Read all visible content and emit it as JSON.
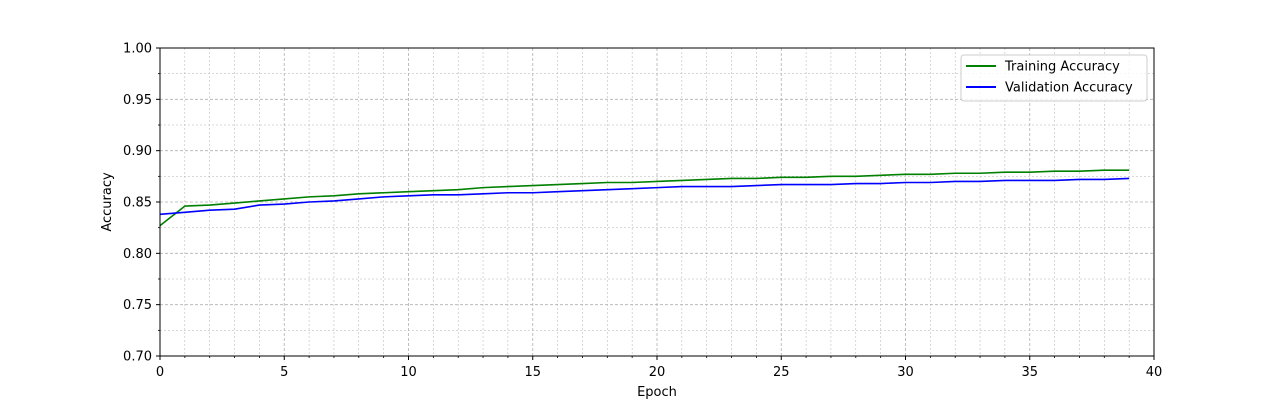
{
  "chart_data": {
    "type": "line",
    "title": "",
    "xlabel": "Epoch",
    "ylabel": "Accuracy",
    "xlim": [
      0,
      40
    ],
    "ylim": [
      0.7,
      1.0
    ],
    "x_ticks": [
      0,
      5,
      10,
      15,
      20,
      25,
      30,
      35,
      40
    ],
    "x_tick_labels": [
      "0",
      "5",
      "10",
      "15",
      "20",
      "25",
      "30",
      "35",
      "40"
    ],
    "y_ticks": [
      0.7,
      0.75,
      0.8,
      0.85,
      0.9,
      0.95,
      1.0
    ],
    "y_tick_labels": [
      "0.70",
      "0.75",
      "0.80",
      "0.85",
      "0.90",
      "0.95",
      "1.00"
    ],
    "grid": true,
    "minor_grid": true,
    "legend_position": "top-right",
    "x": [
      0,
      1,
      2,
      3,
      4,
      5,
      6,
      7,
      8,
      9,
      10,
      11,
      12,
      13,
      14,
      15,
      16,
      17,
      18,
      19,
      20,
      21,
      22,
      23,
      24,
      25,
      26,
      27,
      28,
      29,
      30,
      31,
      32,
      33,
      34,
      35,
      36,
      37,
      38,
      39
    ],
    "series": [
      {
        "name": "Training Accuracy",
        "color": "#008000",
        "values": [
          0.827,
          0.846,
          0.847,
          0.849,
          0.851,
          0.853,
          0.855,
          0.856,
          0.858,
          0.859,
          0.86,
          0.861,
          0.862,
          0.864,
          0.865,
          0.866,
          0.867,
          0.868,
          0.869,
          0.869,
          0.87,
          0.871,
          0.872,
          0.873,
          0.873,
          0.874,
          0.874,
          0.875,
          0.875,
          0.876,
          0.877,
          0.877,
          0.878,
          0.878,
          0.879,
          0.879,
          0.88,
          0.88,
          0.881,
          0.881
        ]
      },
      {
        "name": "Validation Accuracy",
        "color": "#0000ff",
        "values": [
          0.838,
          0.84,
          0.842,
          0.843,
          0.847,
          0.848,
          0.85,
          0.851,
          0.853,
          0.855,
          0.856,
          0.857,
          0.857,
          0.858,
          0.859,
          0.859,
          0.86,
          0.861,
          0.862,
          0.863,
          0.864,
          0.865,
          0.865,
          0.865,
          0.866,
          0.867,
          0.867,
          0.867,
          0.868,
          0.868,
          0.869,
          0.869,
          0.87,
          0.87,
          0.871,
          0.871,
          0.871,
          0.872,
          0.872,
          0.873
        ]
      }
    ]
  }
}
